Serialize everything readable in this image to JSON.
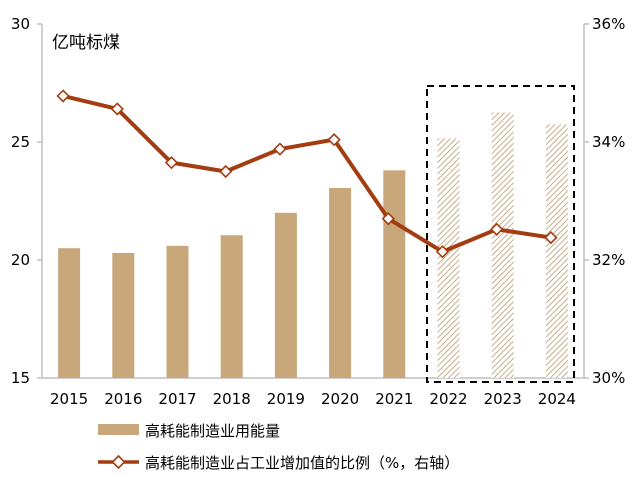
{
  "chart_data": {
    "type": "bar+line",
    "unit_left": "亿吨标煤",
    "categories": [
      "2015",
      "2016",
      "2017",
      "2018",
      "2019",
      "2020",
      "2021",
      "2022",
      "2023",
      "2024"
    ],
    "highlighted_categories": [
      "2022",
      "2023",
      "2024"
    ],
    "left_axis": {
      "ticks": [
        "15",
        "20",
        "25",
        "30"
      ],
      "ylim": [
        15,
        30
      ]
    },
    "right_axis": {
      "ticks": [
        "30%",
        "32%",
        "34%",
        "36%"
      ],
      "ylim": [
        30,
        36
      ]
    },
    "series": [
      {
        "name": "高耗能制造业用能量",
        "type": "bar",
        "axis": "left",
        "values": [
          20.5,
          20.3,
          20.6,
          21.05,
          22.0,
          23.05,
          23.8,
          25.15,
          26.25,
          25.75
        ]
      },
      {
        "name": "高耗能制造业占工业增加值的比例（%，右轴）",
        "type": "line",
        "axis": "right",
        "values": [
          34.78,
          34.56,
          33.65,
          33.5,
          33.88,
          34.04,
          32.7,
          32.14,
          32.52,
          32.38
        ]
      }
    ],
    "colors": {
      "bar": "#C8A87A",
      "bar_hatch": "#B89A6E",
      "line": "#A33C11",
      "marker_fill": "#FFFFFF",
      "axis": "#BFBFBF",
      "highlight_box": "#000000"
    }
  }
}
